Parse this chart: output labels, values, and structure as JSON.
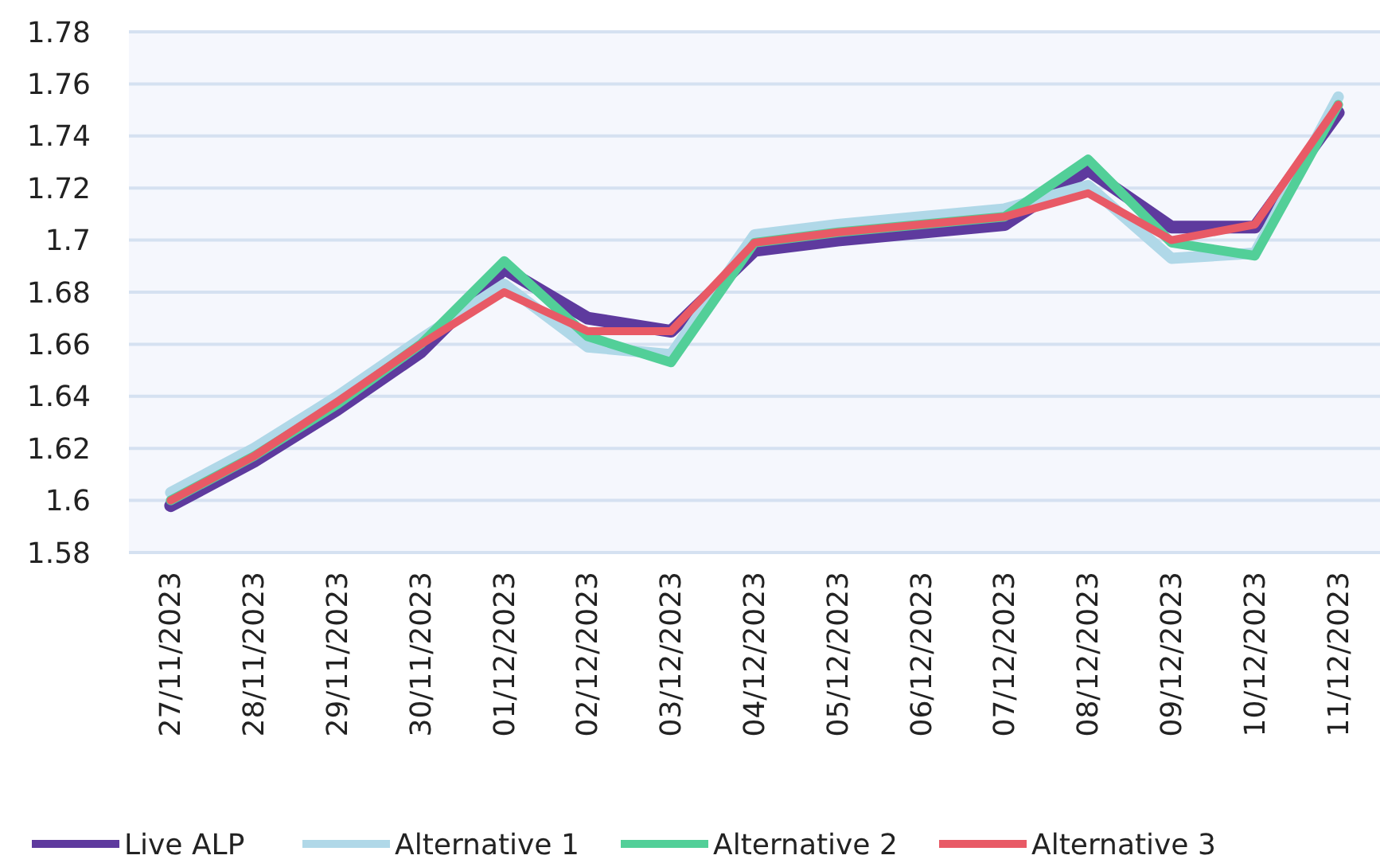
{
  "chart_data": {
    "type": "line",
    "categories": [
      "27/11/2023",
      "28/11/2023",
      "29/11/2023",
      "30/11/2023",
      "01/12/2023",
      "02/12/2023",
      "03/12/2023",
      "04/12/2023",
      "05/12/2023",
      "06/12/2023",
      "07/12/2023",
      "08/12/2023",
      "09/12/2023",
      "10/12/2023",
      "11/12/2023"
    ],
    "series": [
      {
        "name": "Live ALP",
        "color": "#5e3a9e",
        "values": [
          1.598,
          1.615,
          1.635,
          1.657,
          1.689,
          1.67,
          1.665,
          1.696,
          1.7,
          1.703,
          1.706,
          1.727,
          1.705,
          1.705,
          1.749
        ]
      },
      {
        "name": "Alternative 1",
        "color": "#b0d8e8",
        "values": [
          1.603,
          1.62,
          1.64,
          1.662,
          1.683,
          1.659,
          1.656,
          1.702,
          1.706,
          1.709,
          1.712,
          1.721,
          1.693,
          1.695,
          1.755
        ]
      },
      {
        "name": "Alternative 2",
        "color": "#52cf98",
        "values": [
          1.6,
          1.617,
          1.637,
          1.66,
          1.692,
          1.663,
          1.653,
          1.699,
          1.703,
          1.706,
          1.709,
          1.731,
          1.699,
          1.694,
          1.752
        ]
      },
      {
        "name": "Alternative 3",
        "color": "#e85a66",
        "values": [
          1.6,
          1.617,
          1.638,
          1.66,
          1.68,
          1.665,
          1.665,
          1.699,
          1.703,
          1.706,
          1.709,
          1.718,
          1.7,
          1.706,
          1.752
        ]
      }
    ],
    "ylim": [
      1.58,
      1.78
    ],
    "yticks": [
      1.58,
      1.6,
      1.62,
      1.64,
      1.66,
      1.68,
      1.7,
      1.72,
      1.74,
      1.76,
      1.78
    ],
    "grid": "y",
    "legend": "bottom",
    "marker": "none",
    "line_style": "solid"
  }
}
